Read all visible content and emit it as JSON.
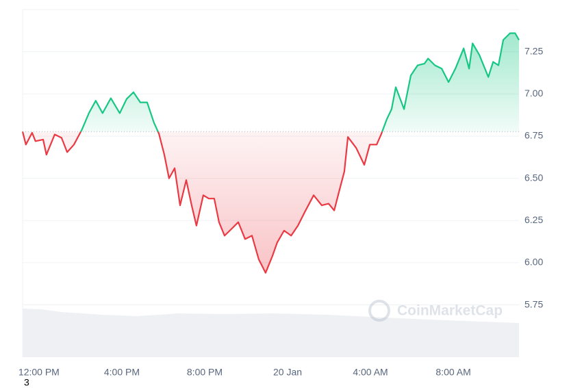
{
  "chart_data": {
    "type": "line",
    "x": [
      -0.79,
      -0.63,
      -0.33,
      -0.17,
      0.2,
      0.36,
      0.76,
      1.09,
      1.36,
      1.69,
      2.08,
      2.41,
      2.74,
      3.07,
      3.47,
      3.9,
      4.23,
      4.56,
      4.89,
      5.22,
      5.55,
      5.79,
      6.05,
      6.28,
      6.55,
      6.81,
      7.11,
      7.37,
      7.6,
      7.93,
      8.2,
      8.46,
      8.69,
      8.96,
      9.29,
      9.62,
      9.95,
      10.28,
      10.61,
      10.94,
      11.27,
      11.5,
      11.83,
      12.17,
      12.5,
      12.83,
      13.26,
      13.65,
      13.98,
      14.25,
      14.48,
      14.74,
      14.91,
      15.31,
      15.7,
      15.97,
      16.3,
      16.53,
      16.79,
      17.02,
      17.22,
      17.62,
      17.95,
      18.28,
      18.61,
      18.78,
      19.11,
      19.44,
      19.77,
      20.1,
      20.5,
      20.76,
      20.93,
      21.26,
      21.69,
      21.92,
      22.18,
      22.41,
      22.74,
      22.98,
      23.17
    ],
    "series": [
      {
        "values": [
          6.777,
          6.7,
          6.77,
          6.72,
          6.73,
          6.64,
          6.76,
          6.74,
          6.655,
          6.7,
          6.79,
          6.886,
          6.96,
          6.886,
          6.975,
          6.886,
          6.97,
          7.01,
          6.95,
          6.95,
          6.83,
          6.765,
          6.64,
          6.5,
          6.56,
          6.34,
          6.49,
          6.34,
          6.22,
          6.4,
          6.38,
          6.38,
          6.24,
          6.16,
          6.2,
          6.24,
          6.14,
          6.16,
          6.02,
          5.94,
          6.04,
          6.12,
          6.19,
          6.16,
          6.22,
          6.3,
          6.4,
          6.34,
          6.35,
          6.31,
          6.42,
          6.54,
          6.745,
          6.68,
          6.58,
          6.7,
          6.7,
          6.765,
          6.85,
          6.91,
          7.04,
          6.91,
          7.11,
          7.17,
          7.18,
          7.21,
          7.17,
          7.15,
          7.07,
          7.15,
          7.27,
          7.15,
          7.3,
          7.23,
          7.1,
          7.19,
          7.17,
          7.32,
          7.36,
          7.36,
          7.32
        ],
        "up_color": "#16c784",
        "down_color": "#ea3943"
      }
    ],
    "baseline": 6.777,
    "xlim": [
      -0.79,
      23.17
    ],
    "xticks": [
      {
        "value": 0,
        "label": "12:00 PM"
      },
      {
        "value": 4,
        "label": "4:00 PM"
      },
      {
        "value": 8,
        "label": "8:00 PM"
      },
      {
        "value": 12,
        "label": "20 Jan"
      },
      {
        "value": 16,
        "label": "4:00 AM"
      },
      {
        "value": 20,
        "label": "8:00 AM"
      }
    ],
    "ylim": [
      5.44,
      7.5
    ],
    "yticks": [
      {
        "value": 5.75,
        "label": "5.75"
      },
      {
        "value": 6,
        "label": "6.00"
      },
      {
        "value": 6.25,
        "label": "6.25"
      },
      {
        "value": 6.5,
        "label": "6.50"
      },
      {
        "value": 6.75,
        "label": "6.75"
      },
      {
        "value": 7,
        "label": "7.00"
      },
      {
        "value": 7.25,
        "label": "7.25"
      }
    ],
    "grid": true,
    "watermark": "CoinMarketCap",
    "footnote": "3"
  }
}
